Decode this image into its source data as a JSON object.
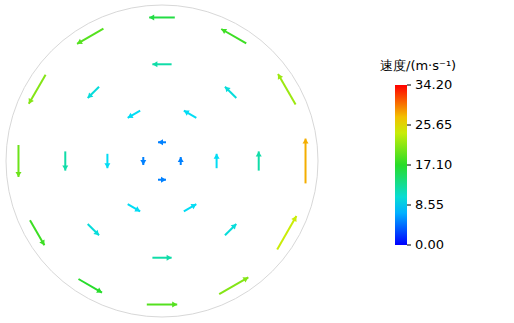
{
  "chart_data": {
    "type": "vector",
    "xlim": [
      -1,
      1
    ],
    "ylim": [
      -1,
      1
    ],
    "tick_labels": false,
    "grid": false,
    "vectors": [
      [
        0.92,
        0,
        0,
        28
      ],
      [
        0.8,
        0.46,
        -11,
        19.1
      ],
      [
        0.46,
        0.8,
        -15.6,
        9
      ],
      [
        0,
        0.92,
        -16,
        0
      ],
      [
        -0.46,
        0.8,
        -16.5,
        -9.5
      ],
      [
        -0.8,
        0.46,
        -10.5,
        -18.2
      ],
      [
        -0.92,
        0,
        0,
        -20
      ],
      [
        -0.8,
        -0.46,
        9,
        -15.6
      ],
      [
        -0.46,
        -0.8,
        14.7,
        -8.5
      ],
      [
        0,
        -0.92,
        19,
        0
      ],
      [
        0.46,
        -0.8,
        18.2,
        10.5
      ],
      [
        0.8,
        -0.46,
        12,
        20.8
      ],
      [
        0.62,
        0,
        0,
        12
      ],
      [
        0.44,
        0.44,
        -7.1,
        7.1
      ],
      [
        0,
        0.62,
        -12,
        0
      ],
      [
        -0.44,
        0.44,
        -7.1,
        -7.1
      ],
      [
        -0.62,
        0,
        0,
        -12
      ],
      [
        -0.44,
        -0.44,
        7.1,
        -7.1
      ],
      [
        0,
        -0.62,
        12,
        0
      ],
      [
        0.44,
        -0.44,
        7.1,
        7.1
      ],
      [
        0.35,
        0,
        0,
        9
      ],
      [
        0.18,
        0.3,
        -7.8,
        4.5
      ],
      [
        -0.18,
        0.3,
        -7.8,
        -4.5
      ],
      [
        -0.35,
        0,
        0,
        -9
      ],
      [
        -0.18,
        -0.3,
        7.8,
        -4.5
      ],
      [
        0.18,
        -0.3,
        7.8,
        4.5
      ],
      [
        0.12,
        0,
        0,
        5
      ],
      [
        0,
        0.12,
        -5,
        0
      ],
      [
        -0.12,
        0,
        0,
        -5
      ],
      [
        0,
        -0.12,
        5,
        0
      ]
    ],
    "colorbar": {
      "label": "速度/(m·s⁻¹)",
      "range": [
        0,
        34.2
      ],
      "ticks": [
        {
          "value": 0,
          "label": "0.00"
        },
        {
          "value": 8.55,
          "label": "8.55"
        },
        {
          "value": 17.1,
          "label": "17.10"
        },
        {
          "value": 25.65,
          "label": "25.65"
        },
        {
          "value": 34.2,
          "label": "34.20"
        }
      ]
    }
  }
}
